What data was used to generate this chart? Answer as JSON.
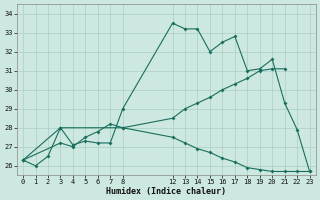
{
  "xlabel": "Humidex (Indice chaleur)",
  "bg_color": "#cce8e0",
  "grid_color": "#aacfc6",
  "line_color": "#1a6e5e",
  "series1_x": [
    0,
    1,
    2,
    3,
    4,
    5,
    6,
    7,
    8,
    12,
    13,
    14,
    15,
    16,
    17,
    18,
    19,
    20,
    21,
    22,
    23
  ],
  "series1_y": [
    26.3,
    26.0,
    26.5,
    28.0,
    27.1,
    27.3,
    27.2,
    27.2,
    29.0,
    33.5,
    33.2,
    33.2,
    32.0,
    32.5,
    32.8,
    31.0,
    31.1,
    31.6,
    29.3,
    27.9,
    25.7
  ],
  "series2_x": [
    0,
    3,
    8,
    12,
    13,
    14,
    15,
    16,
    17,
    18,
    19,
    20,
    21
  ],
  "series2_y": [
    26.3,
    28.0,
    28.0,
    28.5,
    29.0,
    29.3,
    29.6,
    30.0,
    30.3,
    30.6,
    31.0,
    31.1,
    31.1
  ],
  "series3_x": [
    0,
    3,
    4,
    5,
    6,
    7,
    8,
    12,
    13,
    14,
    15,
    16,
    17,
    18,
    19,
    20,
    21,
    22,
    23
  ],
  "series3_y": [
    26.3,
    27.2,
    27.0,
    27.5,
    27.8,
    28.2,
    28.0,
    27.5,
    27.2,
    26.9,
    26.7,
    26.4,
    26.2,
    25.9,
    25.8,
    25.7,
    25.7,
    25.7,
    25.7
  ],
  "ylim": [
    25.5,
    34.5
  ],
  "xlim": [
    -0.5,
    23.5
  ],
  "yticks": [
    26,
    27,
    28,
    29,
    30,
    31,
    32,
    33,
    34
  ],
  "xticks": [
    0,
    1,
    2,
    3,
    4,
    5,
    6,
    7,
    8,
    12,
    13,
    14,
    15,
    16,
    17,
    18,
    19,
    20,
    21,
    22,
    23
  ],
  "figwidth": 3.2,
  "figheight": 2.0,
  "dpi": 100
}
